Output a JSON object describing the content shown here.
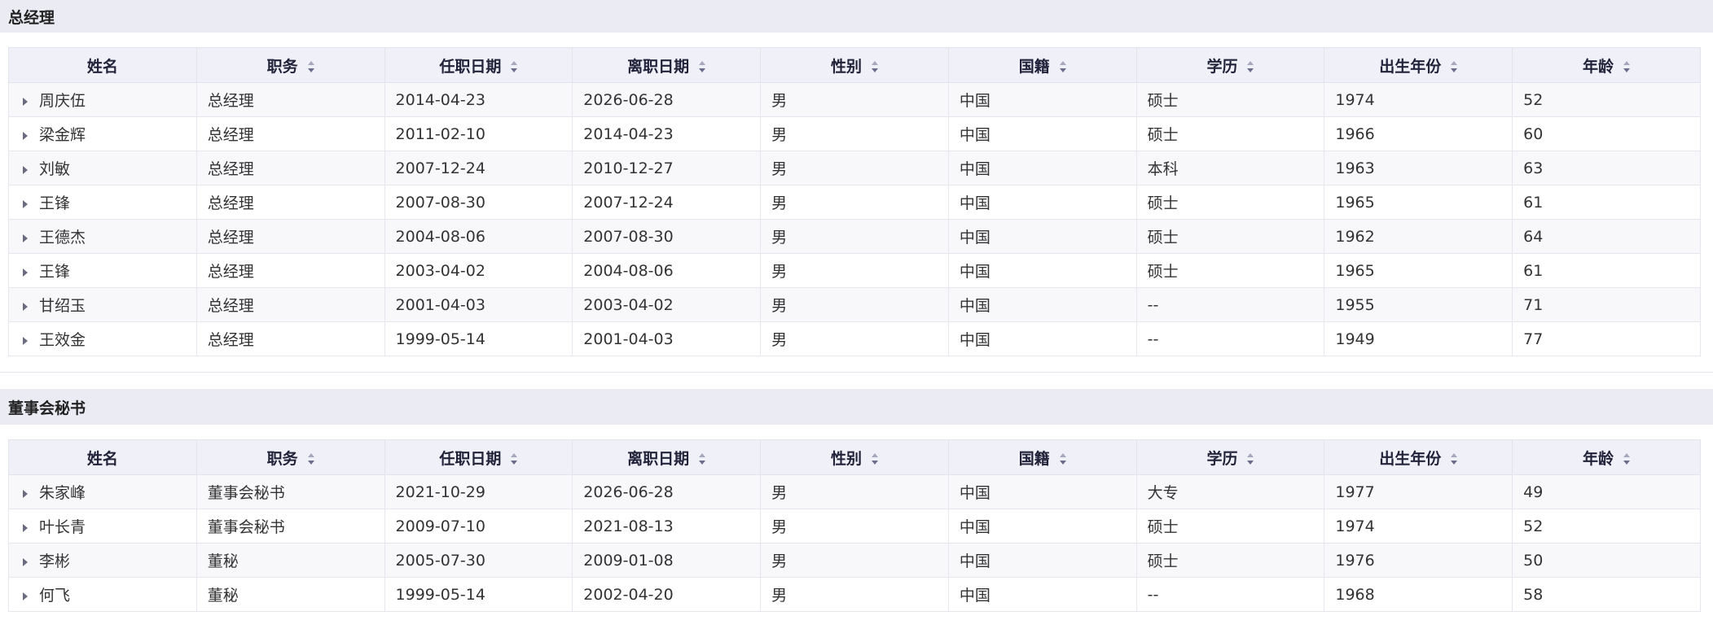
{
  "columns": [
    "姓名",
    "职务",
    "任职日期",
    "离职日期",
    "性别",
    "国籍",
    "学历",
    "出生年份",
    "年龄"
  ],
  "sections": [
    {
      "title": "总经理",
      "rows": [
        [
          "周庆伍",
          "总经理",
          "2014-04-23",
          "2026-06-28",
          "男",
          "中国",
          "硕士",
          "1974",
          "52"
        ],
        [
          "梁金辉",
          "总经理",
          "2011-02-10",
          "2014-04-23",
          "男",
          "中国",
          "硕士",
          "1966",
          "60"
        ],
        [
          "刘敏",
          "总经理",
          "2007-12-24",
          "2010-12-27",
          "男",
          "中国",
          "本科",
          "1963",
          "63"
        ],
        [
          "王锋",
          "总经理",
          "2007-08-30",
          "2007-12-24",
          "男",
          "中国",
          "硕士",
          "1965",
          "61"
        ],
        [
          "王德杰",
          "总经理",
          "2004-08-06",
          "2007-08-30",
          "男",
          "中国",
          "硕士",
          "1962",
          "64"
        ],
        [
          "王锋",
          "总经理",
          "2003-04-02",
          "2004-08-06",
          "男",
          "中国",
          "硕士",
          "1965",
          "61"
        ],
        [
          "甘绍玉",
          "总经理",
          "2001-04-03",
          "2003-04-02",
          "男",
          "中国",
          "--",
          "1955",
          "71"
        ],
        [
          "王效金",
          "总经理",
          "1999-05-14",
          "2001-04-03",
          "男",
          "中国",
          "--",
          "1949",
          "77"
        ]
      ]
    },
    {
      "title": "董事会秘书",
      "rows": [
        [
          "朱家峰",
          "董事会秘书",
          "2021-10-29",
          "2026-06-28",
          "男",
          "中国",
          "大专",
          "1977",
          "49"
        ],
        [
          "叶长青",
          "董事会秘书",
          "2009-07-10",
          "2021-08-13",
          "男",
          "中国",
          "硕士",
          "1974",
          "52"
        ],
        [
          "李彬",
          "董秘",
          "2005-07-30",
          "2009-01-08",
          "男",
          "中国",
          "硕士",
          "1976",
          "50"
        ],
        [
          "何飞",
          "董秘",
          "1999-05-14",
          "2002-04-20",
          "男",
          "中国",
          "--",
          "1968",
          "58"
        ]
      ]
    }
  ]
}
